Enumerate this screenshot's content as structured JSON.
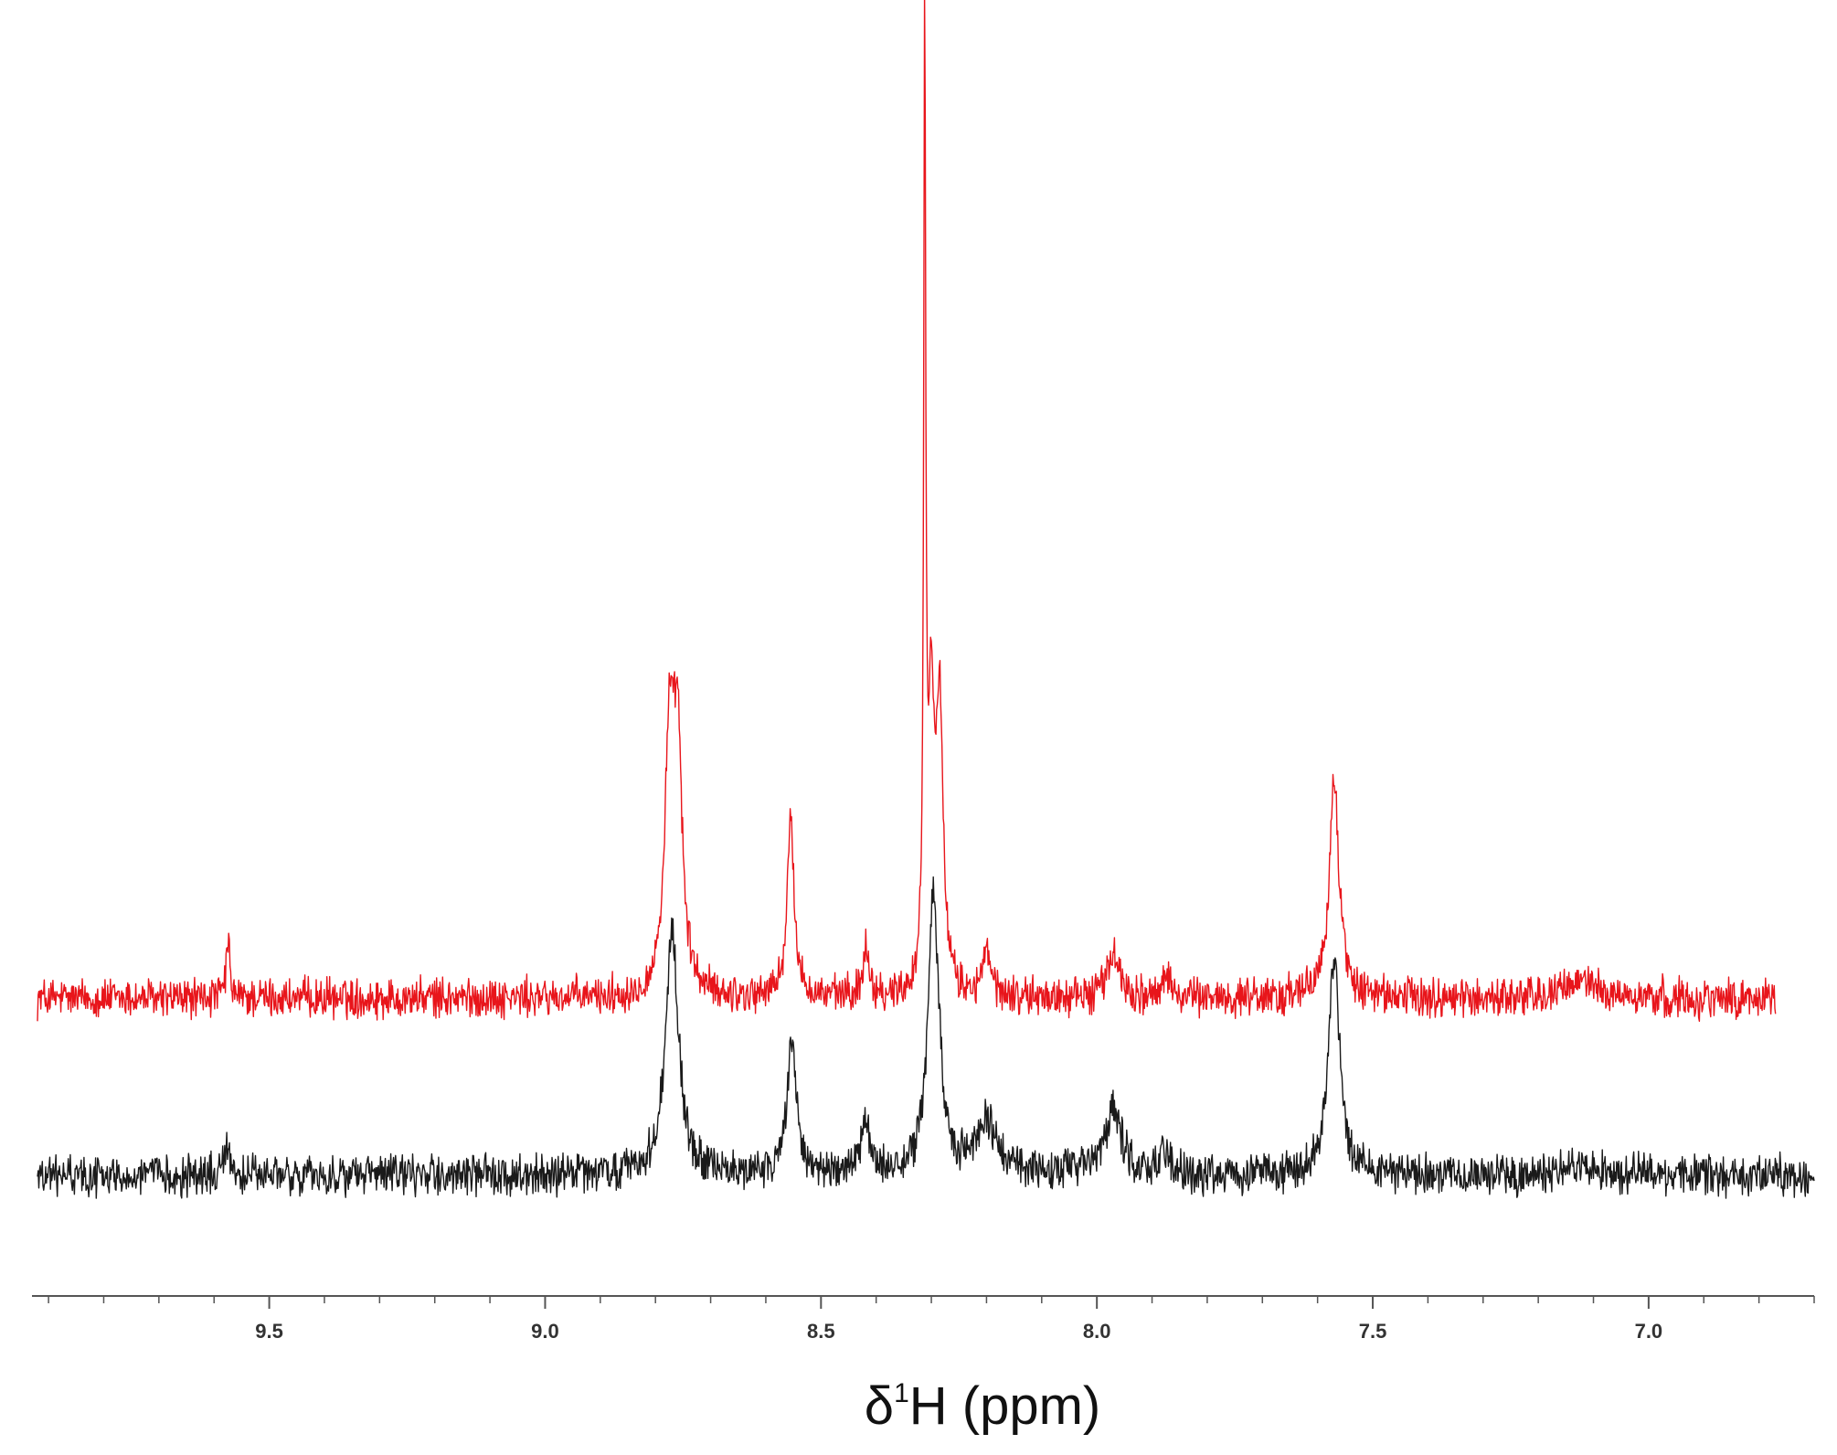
{
  "chart_data": {
    "type": "line",
    "title": "",
    "xlabel": {
      "prefix": "δ",
      "superscript": "1",
      "suffix": "H (ppm)"
    },
    "ylabel": "",
    "x_reversed": true,
    "xlim": [
      9.93,
      6.7
    ],
    "ylim": [
      0,
      100
    ],
    "x_ticks": {
      "major": [
        9.5,
        9.0,
        8.5,
        8.0,
        7.5,
        7.0
      ],
      "major_labels": [
        "9.5",
        "9.0",
        "8.5",
        "8.0",
        "7.5",
        "7.0"
      ],
      "minor_step": 0.1
    },
    "grid": false,
    "legend": "none",
    "series": [
      {
        "color": "#e8151b",
        "x_range": [
          9.92,
          6.77
        ],
        "baseline": 21.5,
        "noise": 1.3,
        "peaks": [
          {
            "x": 9.575,
            "height": 4.5,
            "width": 0.004
          },
          {
            "x": 8.775,
            "height": 19.0,
            "width": 0.01
          },
          {
            "x": 8.76,
            "height": 19.5,
            "width": 0.01
          },
          {
            "x": 8.555,
            "height": 14.0,
            "width": 0.008
          },
          {
            "x": 8.418,
            "height": 4.0,
            "width": 0.007
          },
          {
            "x": 8.312,
            "height": 76.0,
            "width": 0.0022
          },
          {
            "x": 8.3,
            "height": 23.0,
            "width": 0.007
          },
          {
            "x": 8.285,
            "height": 23.0,
            "width": 0.007
          },
          {
            "x": 8.2,
            "height": 3.5,
            "width": 0.009
          },
          {
            "x": 7.97,
            "height": 3.5,
            "width": 0.014
          },
          {
            "x": 7.87,
            "height": 1.5,
            "width": 0.01
          },
          {
            "x": 7.57,
            "height": 17.5,
            "width": 0.011
          },
          {
            "x": 7.12,
            "height": 1.5,
            "width": 0.03
          }
        ]
      },
      {
        "color": "#1a1a1a",
        "x_range": [
          9.92,
          6.7
        ],
        "baseline": 7.0,
        "noise": 1.3,
        "peaks": [
          {
            "x": 9.575,
            "height": 3.0,
            "width": 0.005
          },
          {
            "x": 8.77,
            "height": 20.0,
            "width": 0.014
          },
          {
            "x": 8.553,
            "height": 11.0,
            "width": 0.01
          },
          {
            "x": 8.418,
            "height": 4.0,
            "width": 0.009
          },
          {
            "x": 8.296,
            "height": 23.0,
            "width": 0.012
          },
          {
            "x": 8.2,
            "height": 4.0,
            "width": 0.025
          },
          {
            "x": 7.97,
            "height": 5.5,
            "width": 0.018
          },
          {
            "x": 7.88,
            "height": 1.5,
            "width": 0.015
          },
          {
            "x": 7.57,
            "height": 18.0,
            "width": 0.012
          },
          {
            "x": 7.12,
            "height": 1.0,
            "width": 0.03
          }
        ]
      }
    ]
  }
}
